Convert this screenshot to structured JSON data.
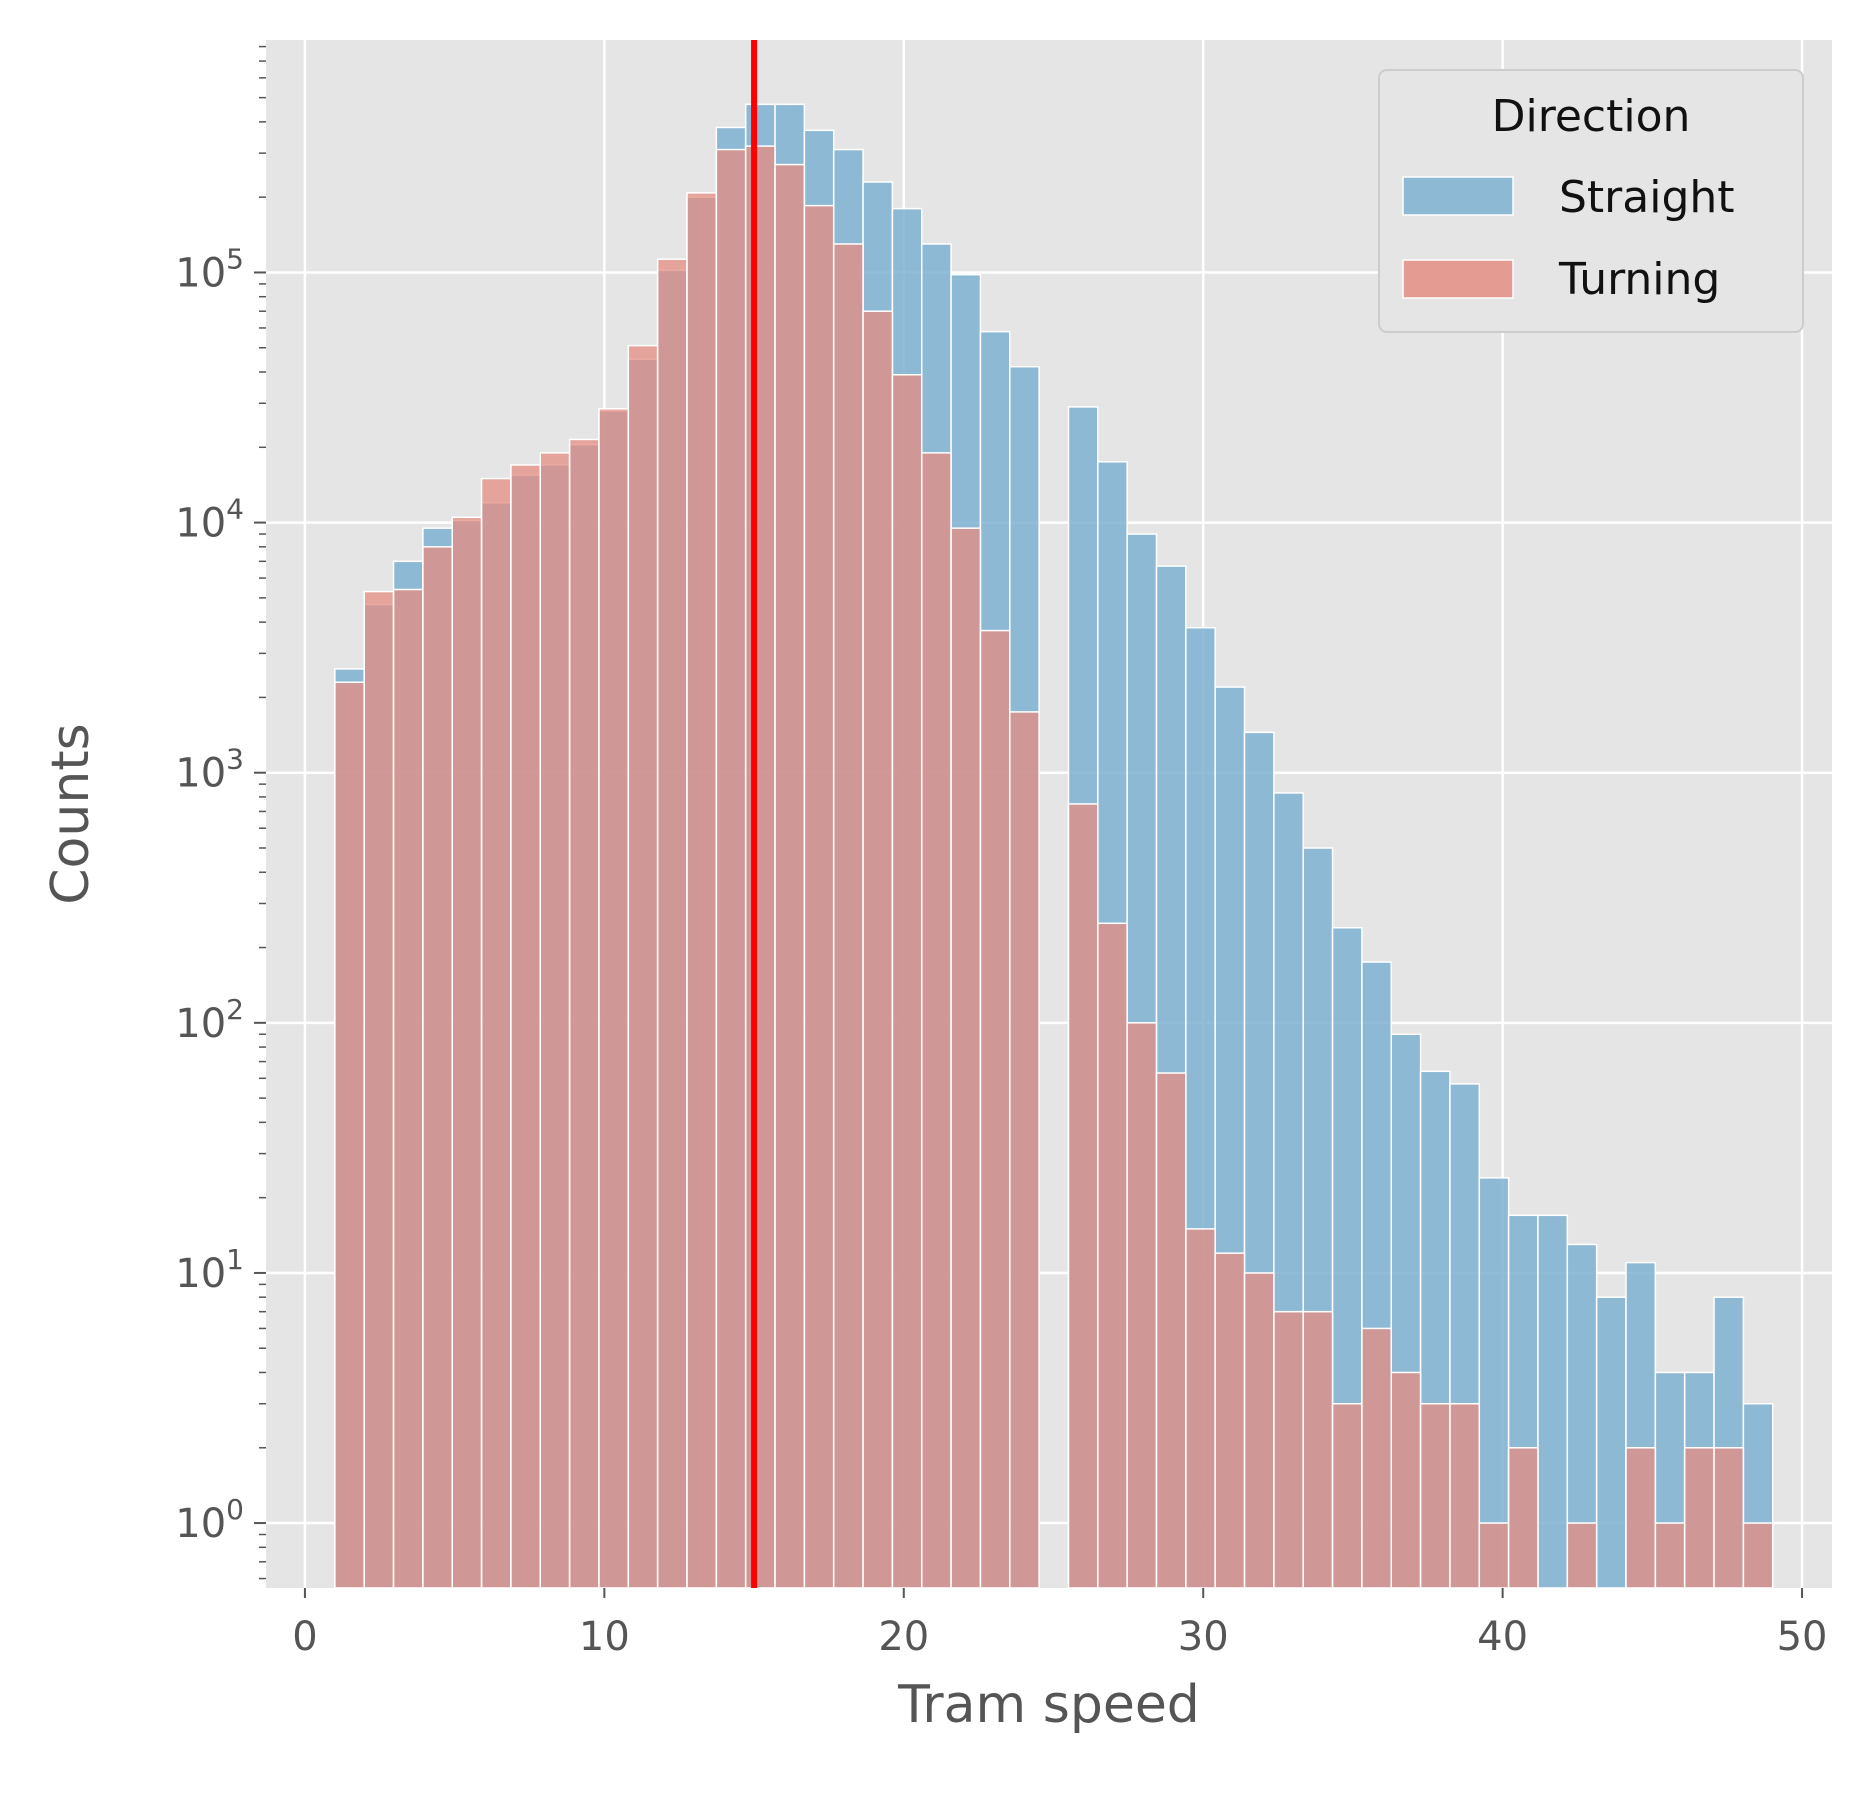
{
  "chart_data": {
    "type": "bar",
    "subtype": "overlaid-histogram",
    "xlabel": "Tram speed",
    "ylabel": "Counts",
    "xlim": [
      -1.3,
      51.0
    ],
    "yscale": "log",
    "ylim": [
      0.55,
      850000
    ],
    "xticks": [
      0,
      10,
      20,
      30,
      40,
      50
    ],
    "yticks": [
      {
        "value": 1,
        "base": "10",
        "exp": "0"
      },
      {
        "value": 10,
        "base": "10",
        "exp": "1"
      },
      {
        "value": 100,
        "base": "10",
        "exp": "2"
      },
      {
        "value": 1000,
        "base": "10",
        "exp": "3"
      },
      {
        "value": 10000,
        "base": "10",
        "exp": "4"
      },
      {
        "value": 100000,
        "base": "10",
        "exp": "5"
      }
    ],
    "grid": true,
    "legend": {
      "title": "Direction",
      "placement": "top-right"
    },
    "vline": {
      "x": 15,
      "color": "#ff0000"
    },
    "bin_width": 0.98,
    "bin_starts": [
      1.0,
      1.98,
      2.96,
      3.94,
      4.92,
      5.9,
      6.88,
      7.86,
      8.84,
      9.82,
      10.8,
      11.78,
      12.76,
      13.74,
      14.72,
      15.7,
      16.68,
      17.66,
      18.64,
      19.62,
      20.6,
      21.58,
      22.56,
      23.54,
      24.52,
      25.5,
      26.48,
      27.46,
      28.44,
      29.42,
      30.4,
      31.38,
      32.36,
      33.34,
      34.32,
      35.3,
      36.28,
      37.26,
      38.24,
      39.22,
      40.2,
      41.18,
      42.16,
      43.14,
      44.12,
      45.1,
      46.08,
      47.06,
      48.04
    ],
    "series": [
      {
        "name": "Straight",
        "color": "#7fb1d2",
        "values": [
          2600,
          4700,
          7000,
          9500,
          10200,
          12000,
          15500,
          17000,
          20500,
          28000,
          45000,
          102000,
          200000,
          380000,
          470000,
          470000,
          370000,
          310000,
          230000,
          180000,
          130000,
          98000,
          58000,
          42000,
          0,
          29000,
          17500,
          9000,
          6700,
          3800,
          2200,
          1450,
          830,
          500,
          240,
          175,
          90,
          64,
          57,
          24,
          17,
          17,
          13,
          8,
          11,
          4,
          4,
          8,
          3
        ]
      },
      {
        "name": "Turning",
        "color": "#e48e82",
        "values": [
          2300,
          5300,
          5400,
          8000,
          10500,
          15000,
          17000,
          19000,
          21500,
          28500,
          51000,
          113000,
          208000,
          310000,
          320000,
          270000,
          185000,
          130000,
          70000,
          39000,
          19000,
          9500,
          3700,
          1750,
          0,
          750,
          250,
          100,
          63,
          15,
          12,
          10,
          7,
          7,
          3,
          6,
          4,
          3,
          3,
          1,
          2,
          0,
          1,
          0,
          2,
          1,
          2,
          2,
          1
        ]
      }
    ]
  }
}
